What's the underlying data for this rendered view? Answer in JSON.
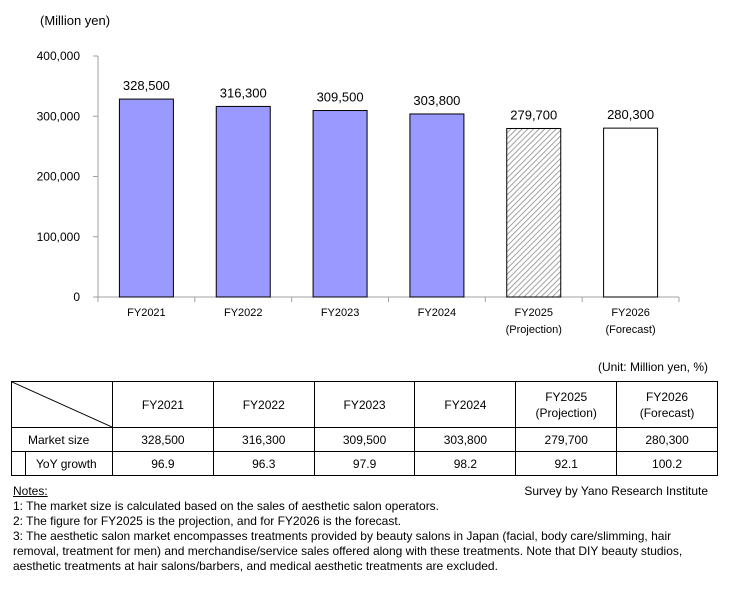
{
  "chart_data": {
    "type": "bar",
    "ylabel": "(Million yen)",
    "ylim": [
      0,
      400000
    ],
    "yticks": [
      "0",
      "100,000",
      "200,000",
      "300,000",
      "400,000"
    ],
    "categories": [
      {
        "label": "FY2021",
        "sub": ""
      },
      {
        "label": "FY2022",
        "sub": ""
      },
      {
        "label": "FY2023",
        "sub": ""
      },
      {
        "label": "FY2024",
        "sub": ""
      },
      {
        "label": "FY2025",
        "sub": "(Projection)"
      },
      {
        "label": "FY2026",
        "sub": "(Forecast)"
      }
    ],
    "values": [
      328500,
      316300,
      309500,
      303800,
      279700,
      280300
    ],
    "value_labels": [
      "328,500",
      "316,300",
      "309,500",
      "303,800",
      "279,700",
      "280,300"
    ],
    "bar_styles": [
      "solid",
      "solid",
      "solid",
      "solid",
      "hatched",
      "outline"
    ],
    "colors": {
      "solid": "#9999ff",
      "hatch": "#8a8a8a",
      "axis": "#a0a0a0"
    }
  },
  "table": {
    "unit": "(Unit: Million yen, %)",
    "headers": [
      {
        "l1": "FY2021",
        "l2": ""
      },
      {
        "l1": "FY2022",
        "l2": ""
      },
      {
        "l1": "FY2023",
        "l2": ""
      },
      {
        "l1": "FY2024",
        "l2": ""
      },
      {
        "l1": "FY2025",
        "l2": "(Projection)"
      },
      {
        "l1": "FY2026",
        "l2": "(Forecast)"
      }
    ],
    "rows": [
      {
        "label": "Market size",
        "cells": [
          "328,500",
          "316,300",
          "309,500",
          "303,800",
          "279,700",
          "280,300"
        ]
      },
      {
        "label": "YoY growth",
        "cells": [
          "96.9",
          "96.3",
          "97.9",
          "98.2",
          "92.1",
          "100.2"
        ]
      }
    ]
  },
  "notes": {
    "heading": "Notes:",
    "source": "Survey by Yano Research Institute",
    "items": [
      "1: The market size is calculated based on the sales of aesthetic salon operators.",
      "2: The figure for FY2025 is the projection, and for FY2026 is the forecast.",
      "3: The aesthetic salon market encompasses treatments provided by beauty salons in Japan (facial, body care/slimming, hair removal, treatment for men) and merchandise/service sales offered along with these treatments. Note that DIY beauty studios, aesthetic treatments at hair salons/barbers, and medical aesthetic treatments are excluded."
    ]
  }
}
